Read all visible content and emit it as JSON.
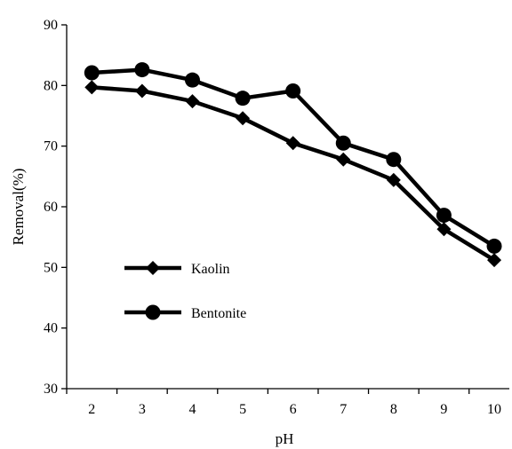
{
  "chart_data": {
    "type": "line",
    "title": "",
    "xlabel": "pH",
    "ylabel": "Removal(%)",
    "x": [
      2,
      3,
      4,
      5,
      6,
      7,
      8,
      9,
      10
    ],
    "xlim": [
      1.5,
      10.3
    ],
    "ylim": [
      30,
      90
    ],
    "yticks": [
      30,
      40,
      50,
      60,
      70,
      80,
      90
    ],
    "grid": false,
    "legend_position": "lower-left",
    "series": [
      {
        "name": "Kaolin",
        "marker": "diamond",
        "color": "#000000",
        "values": [
          79.7,
          79.1,
          77.4,
          74.6,
          70.5,
          67.8,
          64.4,
          56.3,
          51.2
        ]
      },
      {
        "name": "Bentonite",
        "marker": "circle",
        "color": "#000000",
        "values": [
          82.1,
          82.6,
          80.9,
          77.9,
          79.1,
          70.5,
          67.8,
          58.6,
          53.5
        ]
      }
    ]
  }
}
